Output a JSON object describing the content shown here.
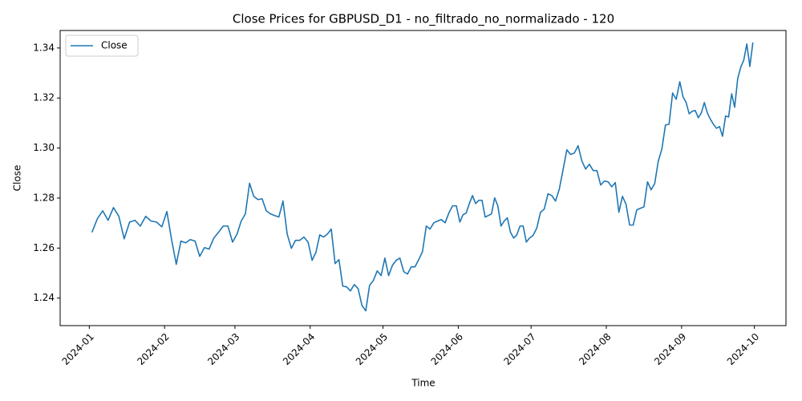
{
  "chart_data": {
    "type": "line",
    "title": "Close Prices for GBPUSD_D1 - no_filtrado_no_normalizado - 120",
    "x_label": "Time",
    "y_label": "Close",
    "x": [
      "2024-01",
      "2024-01",
      "2024-01",
      "2024-01",
      "2024-01",
      "2024-01",
      "2024-01",
      "2024-01",
      "2024-01",
      "2024-01",
      "2024-01",
      "2024-01",
      "2024-01",
      "2024-01",
      "2024-02",
      "2024-02",
      "2024-02",
      "2024-02",
      "2024-02",
      "2024-02",
      "2024-02",
      "2024-02",
      "2024-02",
      "2024-02",
      "2024-02",
      "2024-02",
      "2024-02",
      "2024-02",
      "2024-02",
      "2024-03",
      "2024-03",
      "2024-03",
      "2024-03",
      "2024-03",
      "2024-03",
      "2024-03",
      "2024-03",
      "2024-03",
      "2024-03",
      "2024-03",
      "2024-03",
      "2024-03",
      "2024-03",
      "2024-03",
      "2024-03",
      "2024-03",
      "2024-03",
      "2024-04",
      "2024-04",
      "2024-04",
      "2024-04",
      "2024-04",
      "2024-04",
      "2024-04",
      "2024-04",
      "2024-04",
      "2024-04",
      "2024-04",
      "2024-04",
      "2024-04",
      "2024-04",
      "2024-04",
      "2024-04",
      "2024-04",
      "2024-04",
      "2024-04",
      "2024-05",
      "2024-05",
      "2024-05",
      "2024-05",
      "2024-05",
      "2024-05",
      "2024-05",
      "2024-05",
      "2024-05",
      "2024-05",
      "2024-05",
      "2024-05",
      "2024-05",
      "2024-05",
      "2024-05",
      "2024-05",
      "2024-05",
      "2024-05",
      "2024-05",
      "2024-05",
      "2024-06",
      "2024-06",
      "2024-06",
      "2024-06",
      "2024-06",
      "2024-06",
      "2024-06",
      "2024-06",
      "2024-06",
      "2024-06",
      "2024-06",
      "2024-06",
      "2024-06",
      "2024-06",
      "2024-06",
      "2024-06",
      "2024-06",
      "2024-06",
      "2024-06",
      "2024-06",
      "2024-06",
      "2024-06",
      "2024-06",
      "2024-07",
      "2024-07",
      "2024-07",
      "2024-07",
      "2024-07",
      "2024-07",
      "2024-07",
      "2024-07",
      "2024-07",
      "2024-07",
      "2024-07",
      "2024-07",
      "2024-07",
      "2024-07",
      "2024-07",
      "2024-07",
      "2024-07",
      "2024-07",
      "2024-07",
      "2024-07",
      "2024-08",
      "2024-08",
      "2024-08",
      "2024-08",
      "2024-08",
      "2024-08",
      "2024-08",
      "2024-08",
      "2024-08",
      "2024-08",
      "2024-08",
      "2024-08",
      "2024-08",
      "2024-08",
      "2024-08",
      "2024-08",
      "2024-08",
      "2024-08",
      "2024-08",
      "2024-08",
      "2024-08",
      "2024-09",
      "2024-09",
      "2024-09",
      "2024-09",
      "2024-09",
      "2024-09",
      "2024-09",
      "2024-09",
      "2024-09",
      "2024-09",
      "2024-09",
      "2024-09",
      "2024-09",
      "2024-09",
      "2024-09",
      "2024-09",
      "2024-09",
      "2024-09",
      "2024-09",
      "2024-09",
      "2024-09",
      "2024-09",
      "2024-09",
      "2024-09"
    ],
    "series": [
      {
        "name": "Close",
        "color": "#1f77b4",
        "values": [
          1.2663,
          1.2717,
          1.2749,
          1.2711,
          1.2762,
          1.2727,
          1.2637,
          1.2704,
          1.2711,
          1.2688,
          1.2727,
          1.2708,
          1.2704,
          1.2685,
          1.2746,
          1.2634,
          1.2535,
          1.2628,
          1.2621,
          1.2634,
          1.2628,
          1.2567,
          1.2602,
          1.2596,
          1.264,
          1.2663,
          1.2688,
          1.2688,
          1.2624,
          1.2656,
          1.2708,
          1.2737,
          1.2859,
          1.2807,
          1.2794,
          1.2797,
          1.2749,
          1.2737,
          1.273,
          1.2724,
          1.2788,
          1.2656,
          1.2599,
          1.2631,
          1.2631,
          1.2644,
          1.2624,
          1.2551,
          1.2583,
          1.2653,
          1.2644,
          1.2656,
          1.2676,
          1.2538,
          1.2554,
          1.2448,
          1.2445,
          1.2429,
          1.2454,
          1.2438,
          1.2371,
          1.2349,
          1.2451,
          1.2471,
          1.2509,
          1.249,
          1.256,
          1.249,
          1.2531,
          1.2551,
          1.256,
          1.2506,
          1.2496,
          1.2525,
          1.2525,
          1.2554,
          1.2586,
          1.2688,
          1.2676,
          1.2701,
          1.2708,
          1.2714,
          1.2701,
          1.274,
          1.2769,
          1.2769,
          1.2704,
          1.2733,
          1.274,
          1.2778,
          1.281,
          1.2778,
          1.2791,
          1.2791,
          1.2724,
          1.273,
          1.2737,
          1.2801,
          1.2769,
          1.2688,
          1.2708,
          1.2721,
          1.2663,
          1.264,
          1.2653,
          1.2688,
          1.2688,
          1.2624,
          1.264,
          1.265,
          1.2679,
          1.2743,
          1.2756,
          1.2817,
          1.281,
          1.2788,
          1.2836,
          1.2913,
          1.2993,
          1.2974,
          1.298,
          1.3009,
          1.2948,
          1.2916,
          1.2935,
          1.291,
          1.291,
          1.2852,
          1.2868,
          1.2865,
          1.2845,
          1.2862,
          1.2743,
          1.2807,
          1.2775,
          1.2692,
          1.2692,
          1.2753,
          1.2759,
          1.2765,
          1.2865,
          1.2833,
          1.2858,
          1.2948,
          1.2996,
          1.3092,
          1.3095,
          1.322,
          1.3195,
          1.3265,
          1.3204,
          1.3182,
          1.3137,
          1.3147,
          1.315,
          1.3121,
          1.314,
          1.3182,
          1.314,
          1.3115,
          1.3095,
          1.3079,
          1.3086,
          1.3047,
          1.3128,
          1.3124,
          1.3217,
          1.3163,
          1.3278,
          1.3323,
          1.3352,
          1.3416,
          1.3326,
          1.3422
        ]
      }
    ],
    "xlim": [
      "2023-12-20",
      "2024-10-14"
    ],
    "xticks": [
      "2024-01",
      "2024-02",
      "2024-03",
      "2024-04",
      "2024-05",
      "2024-06",
      "2024-07",
      "2024-08",
      "2024-09",
      "2024-10"
    ],
    "ylim": [
      1.229,
      1.347
    ],
    "yticks": [
      1.24,
      1.26,
      1.28,
      {
        "value": 1.3,
        "label": "1.30"
      },
      1.32,
      1.34
    ],
    "grid": false,
    "legend": "upper left"
  }
}
